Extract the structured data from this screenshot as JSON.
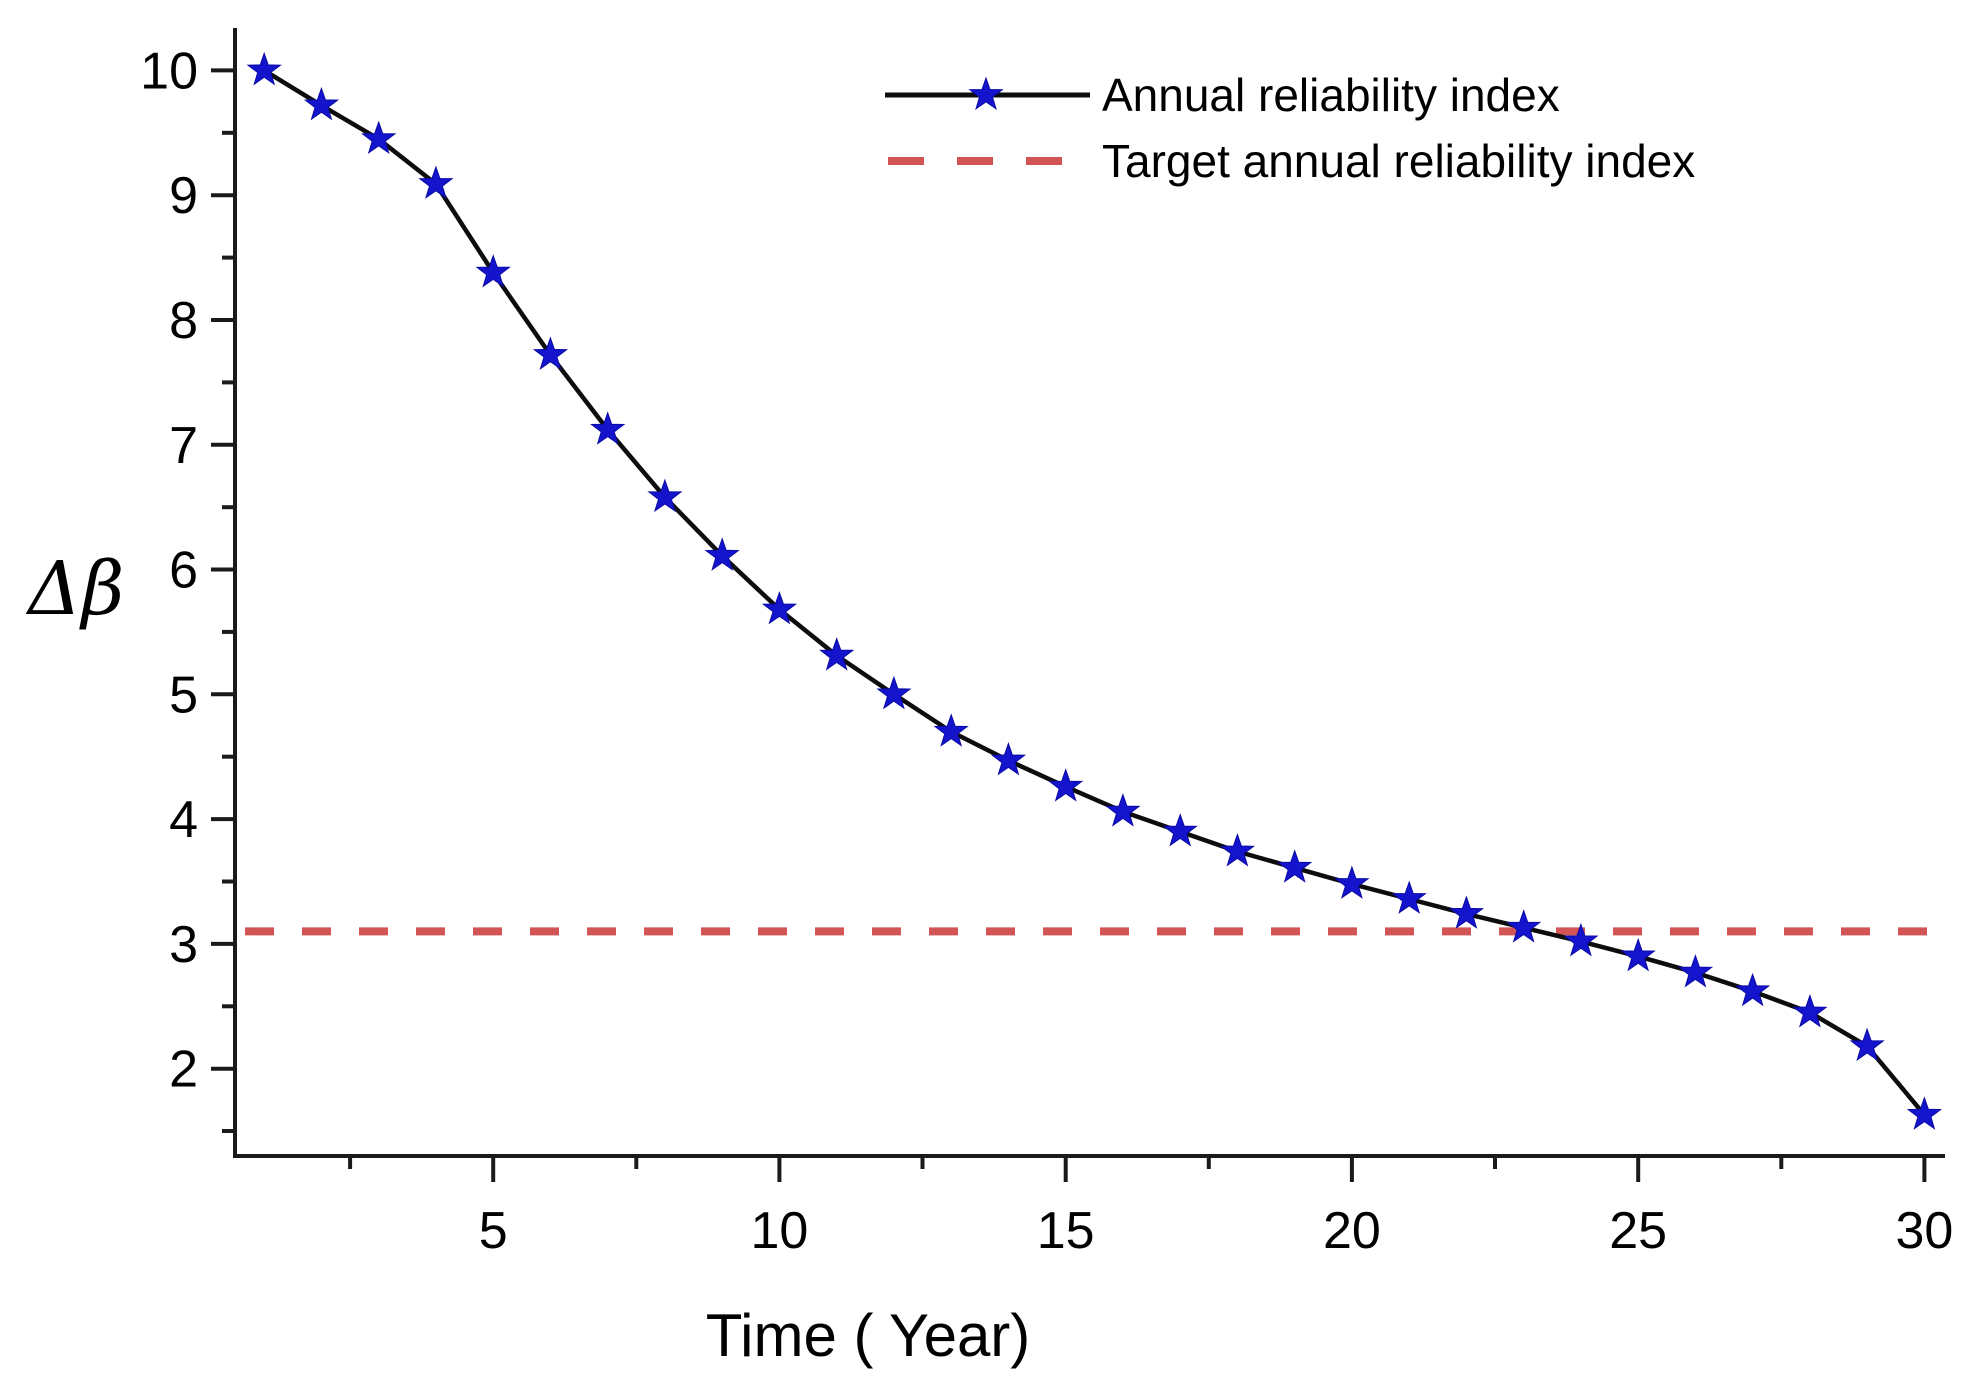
{
  "page": {
    "background": "#ffffff"
  },
  "chart_data": {
    "type": "line",
    "title": "",
    "xlabel": "Time ( Year)",
    "ylabel": "Δβ",
    "x": [
      1,
      2,
      3,
      4,
      5,
      6,
      7,
      8,
      9,
      10,
      11,
      12,
      13,
      14,
      15,
      16,
      17,
      18,
      19,
      20,
      21,
      22,
      23,
      24,
      25,
      26,
      27,
      28,
      29,
      30
    ],
    "series": [
      {
        "name": "Annual reliability index",
        "line_color": "#0d0d0d",
        "marker": "star",
        "marker_color": "#1414cc",
        "values": [
          10.0,
          9.72,
          9.45,
          9.09,
          8.38,
          7.72,
          7.12,
          6.58,
          6.11,
          5.68,
          5.31,
          5.0,
          4.7,
          4.47,
          4.26,
          4.06,
          3.9,
          3.74,
          3.61,
          3.48,
          3.36,
          3.24,
          3.13,
          3.02,
          2.9,
          2.77,
          2.62,
          2.45,
          2.18,
          1.63
        ]
      }
    ],
    "target_line": {
      "label": "Target annual reliability index",
      "value": 3.1,
      "color": "#d25454",
      "style": "dashed"
    },
    "xlim": [
      0.49,
      30.36
    ],
    "ylim": [
      1.3,
      10.34
    ],
    "xticks": [
      5,
      10,
      15,
      20,
      25,
      30
    ],
    "xticks_minor": [
      2.5,
      7.5,
      12.5,
      17.5,
      22.5,
      27.5
    ],
    "yticks": [
      2,
      3,
      4,
      5,
      6,
      7,
      8,
      9,
      10
    ],
    "yticks_minor": [
      1.5,
      2.5,
      3.5,
      4.5,
      5.5,
      6.5,
      7.5,
      8.5,
      9.5
    ],
    "grid": false,
    "legend_position": "top-center",
    "axis_color": "#1a1a1a",
    "text_color": "#000000"
  }
}
